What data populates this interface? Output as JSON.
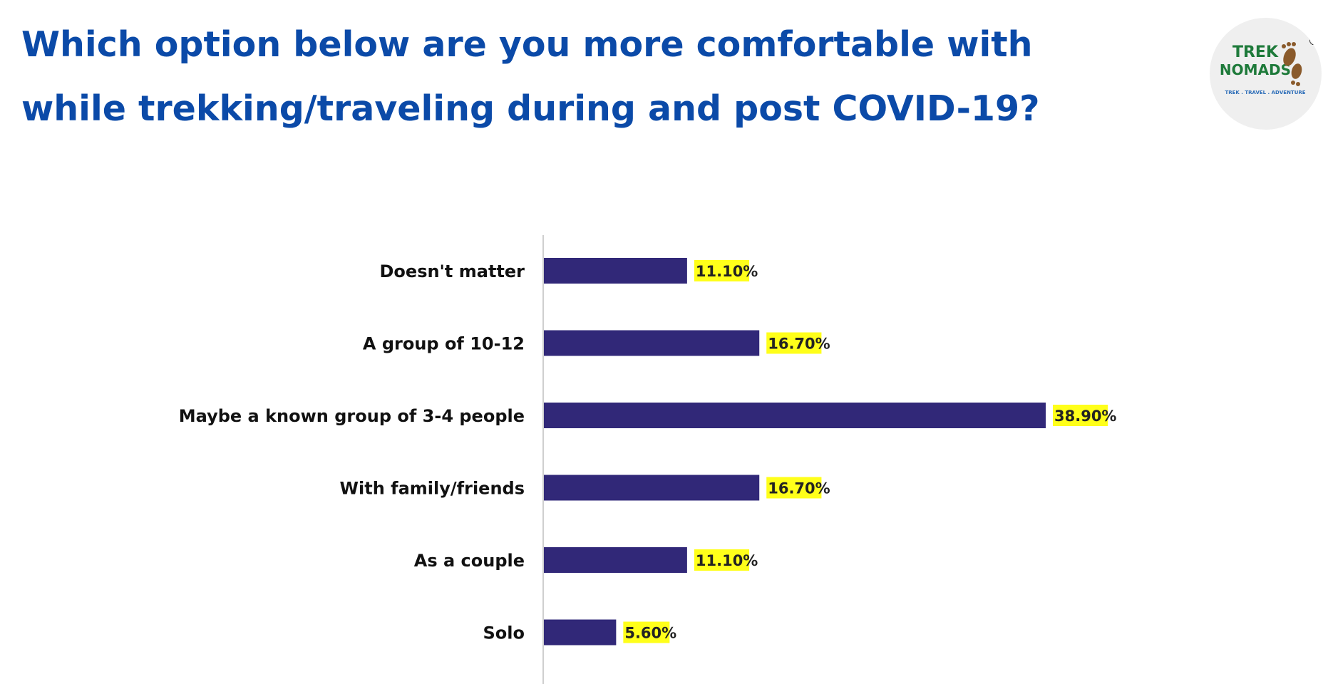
{
  "title": "Which option below are you more comfortable with while trekking/traveling during and post COVID-19?",
  "logo": {
    "line1": "TREK",
    "line2": "NOMADS",
    "tagline": "TREK . TRAVEL . ADVENTURE",
    "registered": "®",
    "icon": "footprints-icon"
  },
  "colors": {
    "title": "#0b4aa8",
    "bar": "#312878",
    "value_highlight": "#ffff1a",
    "logo_green": "#1e7a3a",
    "logo_brown": "#8a5a2b"
  },
  "chart_data": {
    "type": "bar",
    "orientation": "horizontal",
    "categories": [
      "Doesn't matter",
      "A group of 10-12",
      "Maybe a known group of 3-4 people",
      "With family/friends",
      "As a couple",
      "Solo"
    ],
    "values": [
      11.1,
      16.7,
      38.9,
      16.7,
      11.1,
      5.6
    ],
    "value_labels": [
      "11.10%",
      "16.70%",
      "38.90%",
      "16.70%",
      "11.10%",
      "5.60%"
    ],
    "xlim": [
      0,
      45
    ],
    "grid": false,
    "legend": "none"
  }
}
